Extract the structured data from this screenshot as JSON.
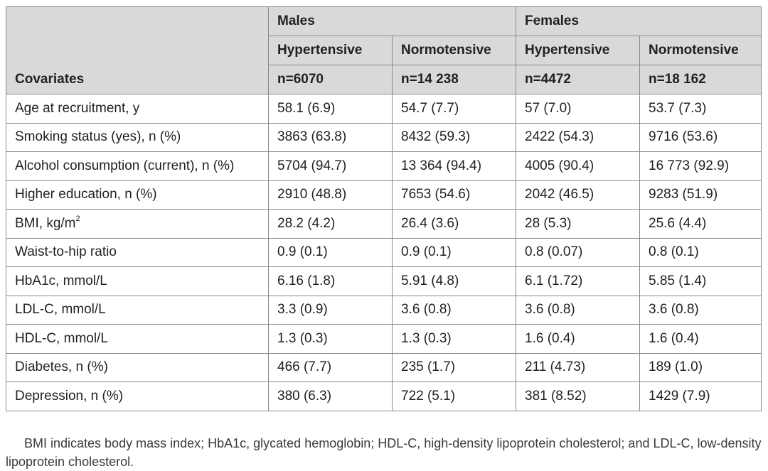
{
  "table": {
    "header": {
      "covariates_label": "Covariates",
      "groups": [
        "Males",
        "Females"
      ],
      "subgroups": [
        "Hypertensive",
        "Normotensive",
        "Hypertensive",
        "Normotensive"
      ],
      "counts": [
        "n=6070",
        "n=14 238",
        "n=4472",
        "n=18 162"
      ]
    },
    "rows": [
      {
        "label": "Age at recruitment, y",
        "cells": [
          "58.1 (6.9)",
          "54.7 (7.7)",
          "57 (7.0)",
          "53.7 (7.3)"
        ]
      },
      {
        "label": "Smoking status (yes), n (%)",
        "cells": [
          "3863 (63.8)",
          "8432 (59.3)",
          "2422 (54.3)",
          "9716 (53.6)"
        ]
      },
      {
        "label": "Alcohol consumption (current), n (%)",
        "cells": [
          "5704 (94.7)",
          "13 364 (94.4)",
          "4005 (90.4)",
          "16 773 (92.9)"
        ]
      },
      {
        "label": "Higher education, n (%)",
        "cells": [
          "2910 (48.8)",
          "7653 (54.6)",
          "2042 (46.5)",
          "9283 (51.9)"
        ]
      },
      {
        "label": "BMI, kg/m",
        "label_sup": "2",
        "cells": [
          "28.2 (4.2)",
          "26.4 (3.6)",
          "28 (5.3)",
          "25.6 (4.4)"
        ]
      },
      {
        "label": "Waist-to-hip ratio",
        "cells": [
          "0.9 (0.1)",
          "0.9 (0.1)",
          "0.8 (0.07)",
          "0.8 (0.1)"
        ]
      },
      {
        "label": "HbA1c, mmol/L",
        "cells": [
          "6.16 (1.8)",
          "5.91 (4.8)",
          "6.1 (1.72)",
          "5.85 (1.4)"
        ]
      },
      {
        "label": "LDL-C, mmol/L",
        "cells": [
          "3.3 (0.9)",
          "3.6 (0.8)",
          "3.6 (0.8)",
          "3.6 (0.8)"
        ]
      },
      {
        "label": "HDL-C, mmol/L",
        "cells": [
          "1.3 (0.3)",
          "1.3 (0.3)",
          "1.6 (0.4)",
          "1.6 (0.4)"
        ]
      },
      {
        "label": "Diabetes, n (%)",
        "cells": [
          "466 (7.7)",
          "235 (1.7)",
          "211 (4.73)",
          "189 (1.0)"
        ]
      },
      {
        "label": "Depression, n (%)",
        "cells": [
          "380 (6.3)",
          "722 (5.1)",
          "381 (8.52)",
          "1429 (7.9)"
        ]
      }
    ]
  },
  "footnote": "BMI indicates body mass index; HbA1c, glycated hemoglobin; HDL-C, high-density lipoprotein cholesterol; and LDL-C, low-density lipoprotein cholesterol."
}
